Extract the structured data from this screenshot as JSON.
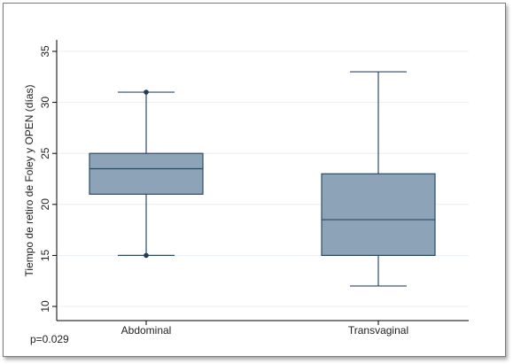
{
  "chart_data": {
    "type": "boxplot",
    "ylabel": "Tiempo de retiro de Foley y OPEN (días)",
    "ylim": [
      10,
      35
    ],
    "yticks": [
      10,
      15,
      20,
      25,
      30,
      35
    ],
    "grid": true,
    "categories": [
      "Abdominal",
      "Transvaginal"
    ],
    "boxes": [
      {
        "category": "Abdominal",
        "whisker_low": 15,
        "q1": 21,
        "median": 23.5,
        "q3": 25,
        "whisker_high": 31,
        "outliers": [
          15,
          31
        ]
      },
      {
        "category": "Transvaginal",
        "whisker_low": 12,
        "q1": 15,
        "median": 18.5,
        "q3": 23,
        "whisker_high": 33,
        "outliers": []
      }
    ],
    "colors": {
      "box_fill": "#8ca3b8",
      "box_stroke": "#2d4a63",
      "grid": "#e8eef2",
      "axis": "#000000"
    }
  },
  "annotation": "p=0.029"
}
